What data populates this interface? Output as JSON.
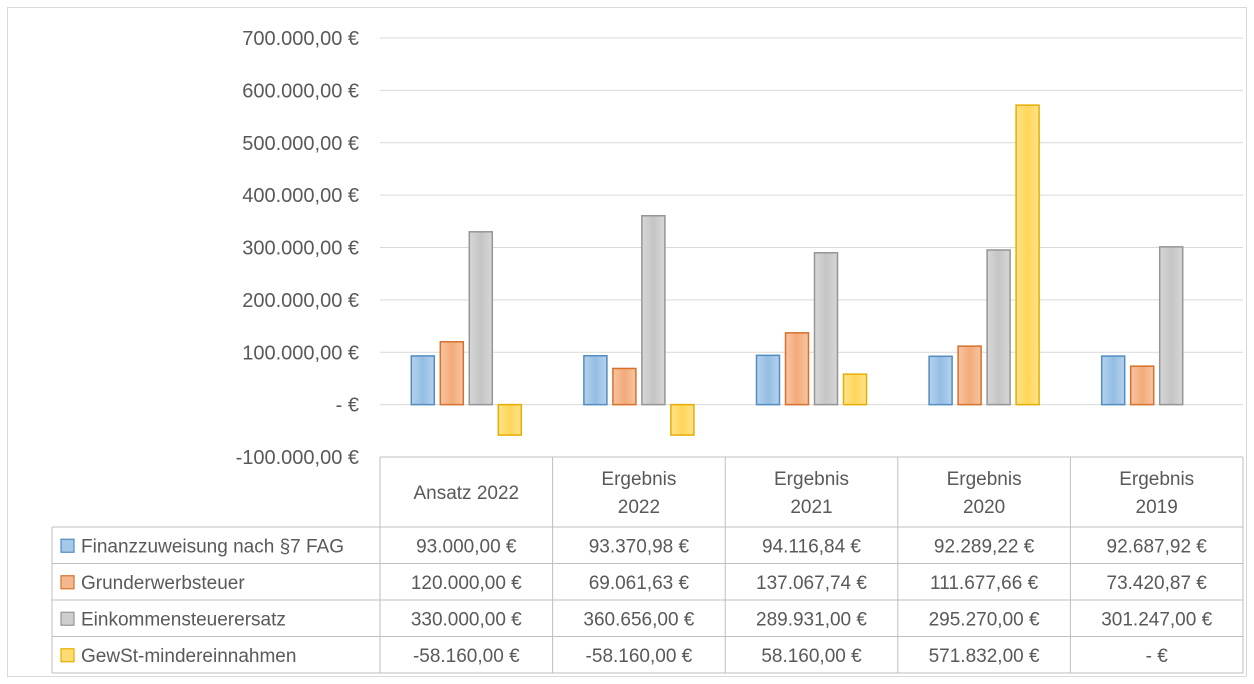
{
  "chart_data": {
    "type": "bar",
    "categories": [
      "Ansatz 2022",
      "Ergebnis 2022",
      "Ergebnis 2021",
      "Ergebnis 2020",
      "Ergebnis 2019"
    ],
    "category_labels": [
      [
        "Ansatz 2022"
      ],
      [
        "Ergebnis",
        "2022"
      ],
      [
        "Ergebnis",
        "2021"
      ],
      [
        "Ergebnis",
        "2020"
      ],
      [
        "Ergebnis",
        "2019"
      ]
    ],
    "series": [
      {
        "name": "Finanzzuweisung nach §7 FAG",
        "color": "#5B9BD5",
        "values": [
          93000,
          93370.98,
          94116.84,
          92289.22,
          92687.92
        ],
        "labels": [
          "93.000,00 €",
          "93.370,98 €",
          "94.116,84 €",
          "92.289,22 €",
          "92.687,92 €"
        ]
      },
      {
        "name": "Grunderwerbsteuer",
        "color": "#ED7D31",
        "values": [
          120000,
          69061.63,
          137067.74,
          111677.66,
          73420.87
        ],
        "labels": [
          "120.000,00 €",
          "69.061,63 €",
          "137.067,74 €",
          "111.677,66 €",
          "73.420,87 €"
        ]
      },
      {
        "name": "Einkommensteuerersatz",
        "color": "#A5A5A5",
        "values": [
          330000,
          360656,
          289931,
          295270,
          301247
        ],
        "labels": [
          "330.000,00 €",
          "360.656,00 €",
          "289.931,00 €",
          "295.270,00 €",
          "301.247,00 €"
        ]
      },
      {
        "name": "GewSt-mindereinnahmen",
        "color": "#FFC000",
        "values": [
          -58160,
          -58160,
          58160,
          571832,
          0
        ],
        "labels": [
          "-58.160,00 €",
          "-58.160,00 €",
          "58.160,00 €",
          "571.832,00 €",
          "-  €"
        ]
      }
    ],
    "yticks": [
      {
        "value": 700000,
        "label": "700.000,00 €"
      },
      {
        "value": 600000,
        "label": "600.000,00 €"
      },
      {
        "value": 500000,
        "label": "500.000,00 €"
      },
      {
        "value": 400000,
        "label": "400.000,00 €"
      },
      {
        "value": 300000,
        "label": "300.000,00 €"
      },
      {
        "value": 200000,
        "label": "200.000,00 €"
      },
      {
        "value": 100000,
        "label": "100.000,00 €"
      },
      {
        "value": 0,
        "label": "-  €"
      },
      {
        "value": -100000,
        "label": "-100.000,00 €"
      }
    ],
    "ylim": [
      -100000,
      700000
    ],
    "grid": true,
    "legend": "data-table",
    "title": "",
    "xlabel": "",
    "ylabel": ""
  }
}
